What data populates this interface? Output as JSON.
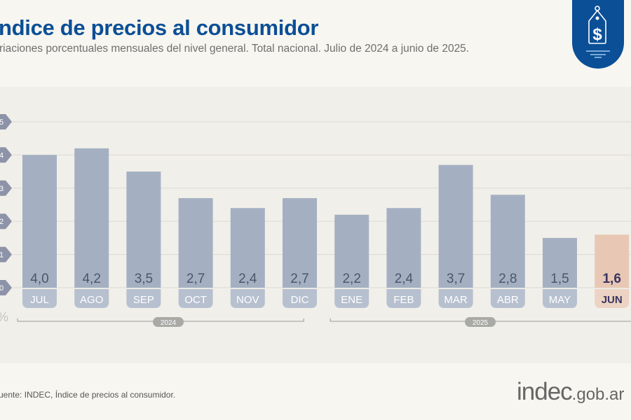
{
  "header": {
    "title": "ndice de precios al consumidor",
    "subtitle": "riaciones porcentuales mensuales del nivel general. Total nacional. Julio de 2024 a junio de 2025."
  },
  "badge": {
    "icon": "price-tag-dollar-icon",
    "color": "#0b4f96"
  },
  "footer": {
    "source": "uente: INDEC, Índice de precios al consumidor.",
    "logo_main": "indec",
    "logo_suffix": ".gob.ar"
  },
  "chart_data": {
    "type": "bar",
    "categories": [
      "JUL",
      "AGO",
      "SEP",
      "OCT",
      "NOV",
      "DIC",
      "ENE",
      "FEB",
      "MAR",
      "ABR",
      "MAY",
      "JUN"
    ],
    "values": [
      4.0,
      4.2,
      3.5,
      2.7,
      2.4,
      2.7,
      2.2,
      2.4,
      3.7,
      2.8,
      1.5,
      1.6
    ],
    "value_labels": [
      "4,0",
      "4,2",
      "3,5",
      "2,7",
      "2,4",
      "2,7",
      "2,2",
      "2,4",
      "3,7",
      "2,8",
      "1,5",
      "1,6"
    ],
    "y_ticks": [
      "0",
      "1",
      "2",
      "3",
      "4",
      "5"
    ],
    "ylim": [
      0,
      5
    ],
    "yunit": "%",
    "grid": true,
    "years": [
      {
        "label": "2024",
        "months": 6
      },
      {
        "label": "2025",
        "months": 6
      }
    ],
    "colors": {
      "bar": "#a4b0c2",
      "highlight": "#e8c8b4",
      "label_pill": "#b7c0cf",
      "highlight_pill": "#ecd3c3",
      "value_text": "#4c566a",
      "highlight_text": "#3a3560",
      "tick_badge": "#8d93a8"
    },
    "highlight_index": 11
  }
}
